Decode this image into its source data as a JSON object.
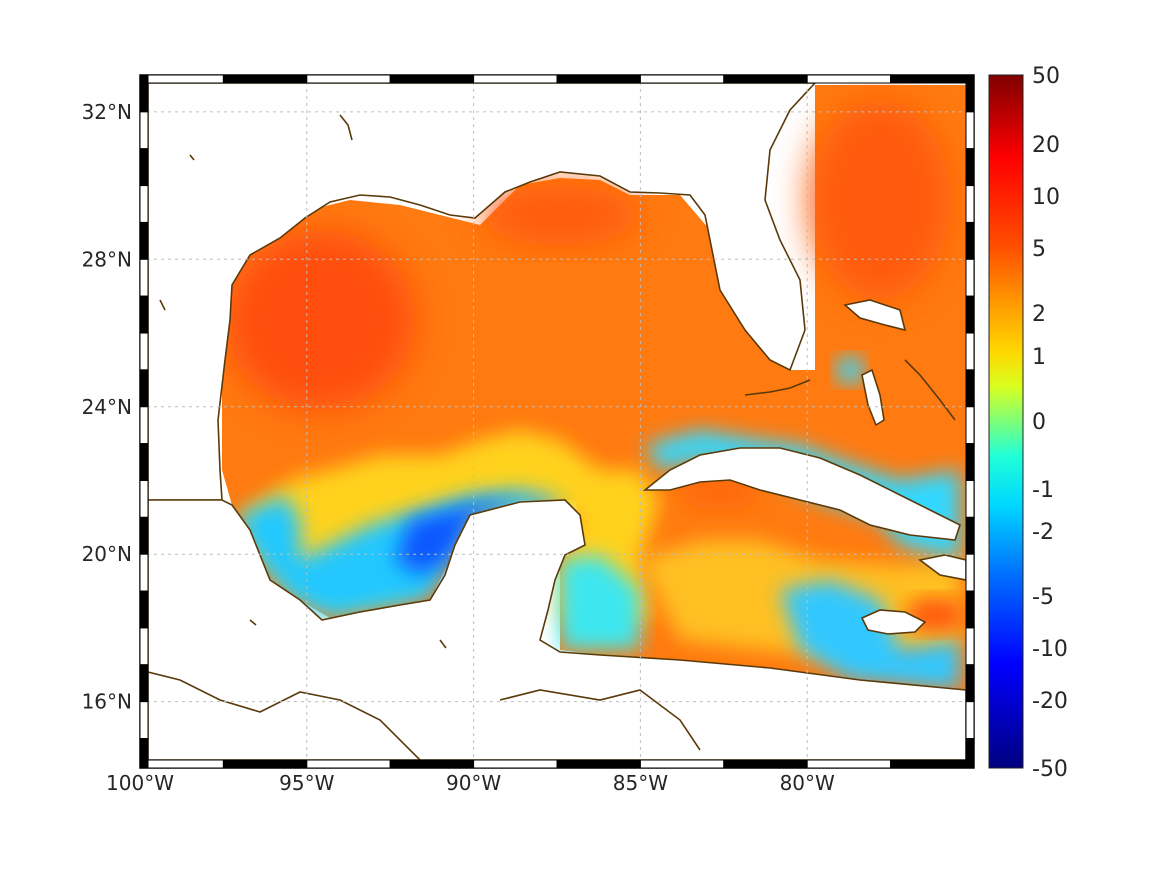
{
  "map": {
    "lon_ticks": [
      {
        "value": -100,
        "label": "100°W"
      },
      {
        "value": -95,
        "label": "95°W"
      },
      {
        "value": -90,
        "label": "90°W"
      },
      {
        "value": -85,
        "label": "85°W"
      },
      {
        "value": -80,
        "label": "80°W"
      }
    ],
    "lat_ticks": [
      {
        "value": 32,
        "label": "32°N"
      },
      {
        "value": 28,
        "label": "28°N"
      },
      {
        "value": 24,
        "label": "24°N"
      },
      {
        "value": 20,
        "label": "20°N"
      },
      {
        "value": 16,
        "label": "16°N"
      }
    ],
    "lon_range": [
      -100,
      -75
    ],
    "lat_range": [
      14.2,
      33
    ],
    "grid": true,
    "frame": "black-white-checkered",
    "colors": {
      "coastline": "#5a3a0a",
      "grid": "#bdbdbd",
      "land": "#ffffff"
    }
  },
  "colorbar": {
    "ticks": [
      "50",
      "20",
      "10",
      "5",
      "2",
      "1",
      "0",
      "-1",
      "-2",
      "-5",
      "-10",
      "-20",
      "-50"
    ],
    "range": [
      -50,
      50
    ],
    "colormap": "jet",
    "scale": "symmetric-log"
  }
}
